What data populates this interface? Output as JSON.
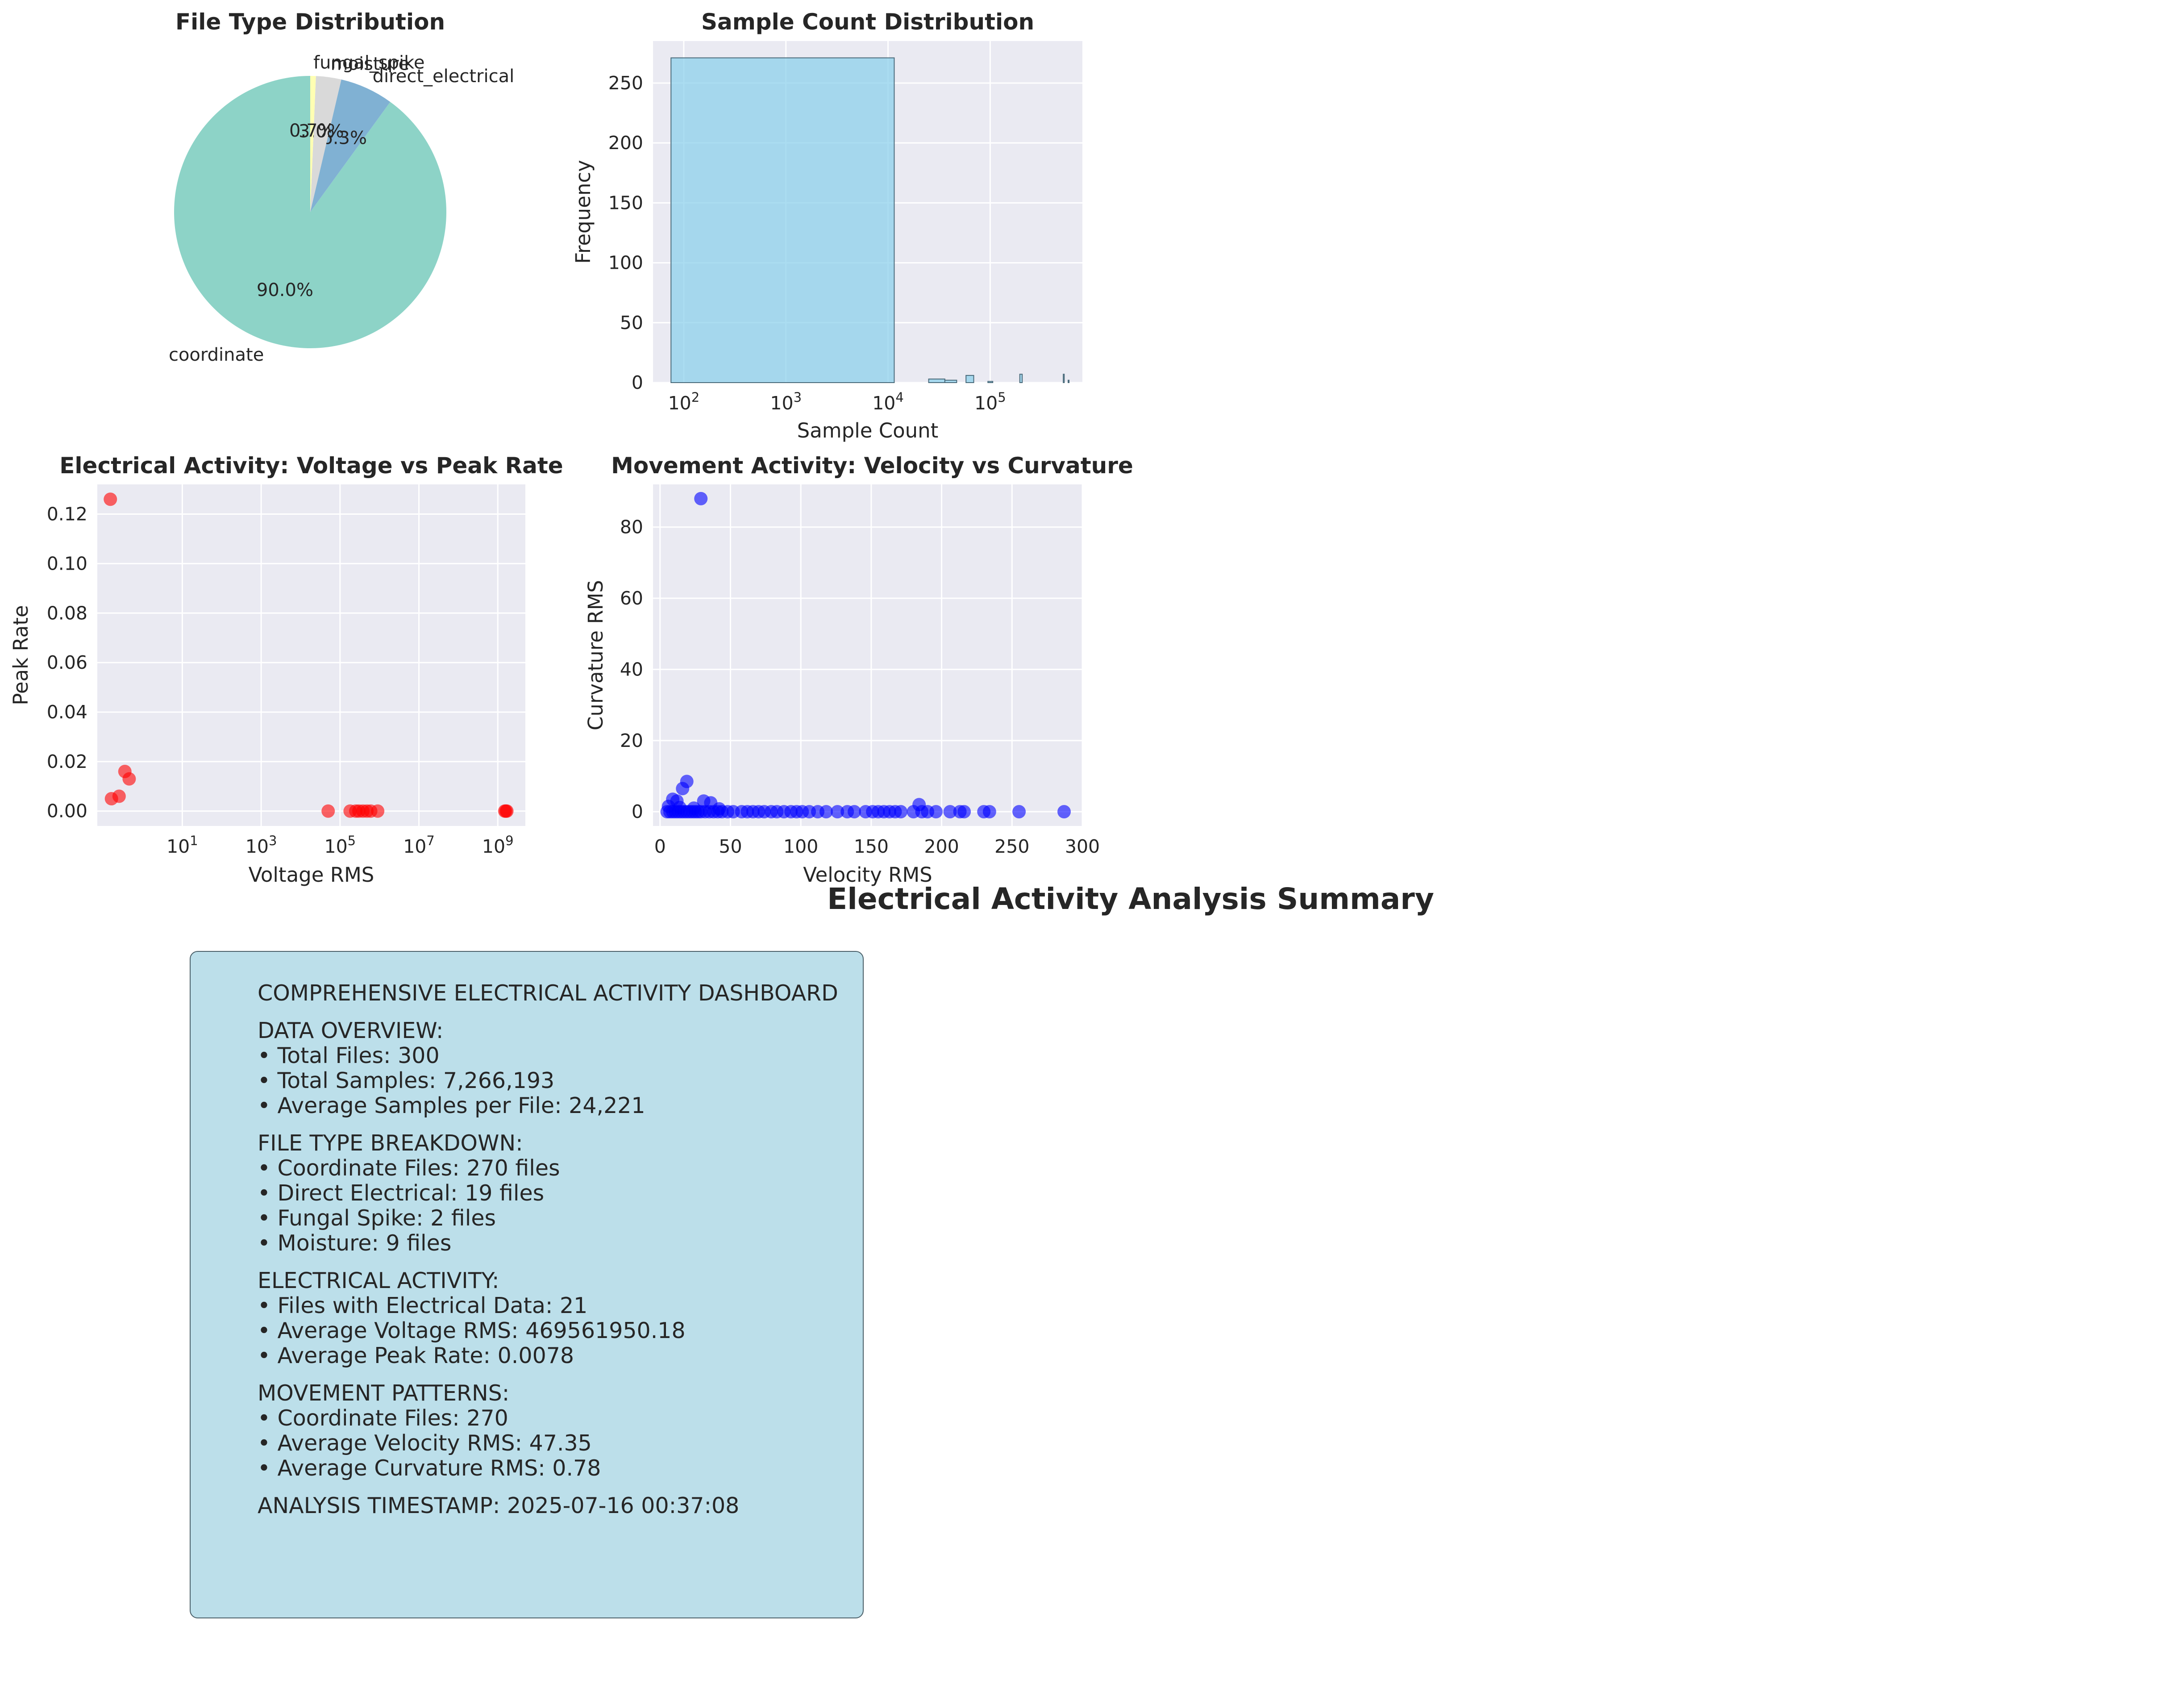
{
  "colors": {
    "axes_bg": "#eaeaf2",
    "grid": "#ffffff",
    "hist_fill": "#87ceeb",
    "pie": [
      "#8dd3c7",
      "#80b1d3",
      "#d9d9d9",
      "#ffffb3"
    ],
    "electrical_points": "#ff0000",
    "movement_points": "#0000ff",
    "summary_box": "#bcdfea"
  },
  "suptitle": "Electrical Activity Analysis Summary",
  "chart_data": [
    {
      "type": "pie",
      "title": "File Type Distribution",
      "slices": [
        {
          "label": "coordinate",
          "value": 270,
          "pct_label": "90.0%"
        },
        {
          "label": "direct_electrical",
          "value": 19,
          "pct_label": "6.3%"
        },
        {
          "label": "moisture",
          "value": 9,
          "pct_label": "3.0%"
        },
        {
          "label": "fungal_spike",
          "value": 2,
          "pct_label": "0.7%"
        }
      ],
      "start_angle_deg": 90
    },
    {
      "type": "bar",
      "title": "Sample Count Distribution",
      "xlabel": "Sample Count",
      "ylabel": "Frequency",
      "x_scale": "log",
      "xlim": [
        50,
        800000
      ],
      "ylim": [
        0,
        285
      ],
      "x_ticks": [
        "10^2",
        "10^3",
        "10^4",
        "10^5"
      ],
      "y_ticks": [
        0,
        50,
        100,
        150,
        200,
        250
      ],
      "bins": [
        {
          "x_start": 75,
          "x_end": 11500,
          "count": 271
        },
        {
          "x_start": 25000,
          "x_end": 36000,
          "count": 3
        },
        {
          "x_start": 36000,
          "x_end": 47000,
          "count": 2
        },
        {
          "x_start": 58000,
          "x_end": 69000,
          "count": 6
        },
        {
          "x_start": 95000,
          "x_end": 106000,
          "count": 1
        },
        {
          "x_start": 195000,
          "x_end": 206000,
          "count": 7
        },
        {
          "x_start": 520000,
          "x_end": 531000,
          "count": 7
        },
        {
          "x_start": 580000,
          "x_end": 591000,
          "count": 2
        }
      ]
    },
    {
      "type": "scatter",
      "title": "Electrical Activity: Voltage vs Peak Rate",
      "xlabel": "Voltage RMS",
      "ylabel": "Peak Rate",
      "x_scale": "log",
      "xlim": [
        0.07,
        5000000000
      ],
      "ylim": [
        -0.006,
        0.132
      ],
      "x_ticks": [
        "10^1",
        "10^3",
        "10^5",
        "10^7",
        "10^9"
      ],
      "y_ticks": [
        0.0,
        0.02,
        0.04,
        0.06,
        0.08,
        0.1,
        0.12
      ],
      "points": [
        {
          "x": 0.15,
          "y": 0.126
        },
        {
          "x": 0.16,
          "y": 0.005
        },
        {
          "x": 0.25,
          "y": 0.006
        },
        {
          "x": 0.35,
          "y": 0.016
        },
        {
          "x": 0.45,
          "y": 0.013
        },
        {
          "x": 50000,
          "y": 0.0
        },
        {
          "x": 180000,
          "y": 0.0
        },
        {
          "x": 250000,
          "y": 0.0
        },
        {
          "x": 300000,
          "y": 0.0
        },
        {
          "x": 380000,
          "y": 0.0
        },
        {
          "x": 480000,
          "y": 0.0
        },
        {
          "x": 600000,
          "y": 0.0
        },
        {
          "x": 900000,
          "y": 0.0
        },
        {
          "x": 1500000000,
          "y": 0.0
        },
        {
          "x": 1600000000,
          "y": 0.0
        },
        {
          "x": 1700000000,
          "y": 0.0
        }
      ]
    },
    {
      "type": "scatter",
      "title": "Movement Activity: Velocity vs Curvature",
      "xlabel": "Velocity RMS",
      "ylabel": "Curvature RMS",
      "xlim": [
        -5,
        300
      ],
      "ylim": [
        -4,
        92
      ],
      "x_ticks": [
        0,
        50,
        100,
        150,
        200,
        250,
        300
      ],
      "y_ticks": [
        0,
        20,
        40,
        60,
        80
      ],
      "points": [
        {
          "x": 29,
          "y": 88
        },
        {
          "x": 19,
          "y": 8.5
        },
        {
          "x": 16,
          "y": 6.5
        },
        {
          "x": 9,
          "y": 3.5
        },
        {
          "x": 12,
          "y": 3
        },
        {
          "x": 31,
          "y": 3
        },
        {
          "x": 36,
          "y": 2.5
        },
        {
          "x": 184,
          "y": 2
        },
        {
          "x": 6,
          "y": 1.5
        },
        {
          "x": 14,
          "y": 1.2
        },
        {
          "x": 24,
          "y": 1
        },
        {
          "x": 42,
          "y": 0.8
        },
        {
          "x": 5,
          "y": 0
        },
        {
          "x": 7,
          "y": 0
        },
        {
          "x": 9,
          "y": 0
        },
        {
          "x": 11,
          "y": 0
        },
        {
          "x": 13,
          "y": 0
        },
        {
          "x": 15,
          "y": 0
        },
        {
          "x": 17,
          "y": 0
        },
        {
          "x": 19,
          "y": 0
        },
        {
          "x": 21,
          "y": 0
        },
        {
          "x": 23,
          "y": 0
        },
        {
          "x": 25,
          "y": 0
        },
        {
          "x": 27,
          "y": 0
        },
        {
          "x": 29,
          "y": 0
        },
        {
          "x": 32,
          "y": 0
        },
        {
          "x": 35,
          "y": 0
        },
        {
          "x": 38,
          "y": 0
        },
        {
          "x": 41,
          "y": 0
        },
        {
          "x": 44,
          "y": 0
        },
        {
          "x": 48,
          "y": 0
        },
        {
          "x": 52,
          "y": 0
        },
        {
          "x": 58,
          "y": 0
        },
        {
          "x": 62,
          "y": 0
        },
        {
          "x": 66,
          "y": 0
        },
        {
          "x": 70,
          "y": 0
        },
        {
          "x": 74,
          "y": 0
        },
        {
          "x": 79,
          "y": 0
        },
        {
          "x": 83,
          "y": 0
        },
        {
          "x": 88,
          "y": 0
        },
        {
          "x": 93,
          "y": 0
        },
        {
          "x": 97,
          "y": 0
        },
        {
          "x": 101,
          "y": 0
        },
        {
          "x": 106,
          "y": 0
        },
        {
          "x": 112,
          "y": 0
        },
        {
          "x": 118,
          "y": 0
        },
        {
          "x": 126,
          "y": 0
        },
        {
          "x": 133,
          "y": 0
        },
        {
          "x": 138,
          "y": 0
        },
        {
          "x": 146,
          "y": 0
        },
        {
          "x": 151,
          "y": 0
        },
        {
          "x": 155,
          "y": 0
        },
        {
          "x": 159,
          "y": 0
        },
        {
          "x": 163,
          "y": 0
        },
        {
          "x": 167,
          "y": 0
        },
        {
          "x": 171,
          "y": 0
        },
        {
          "x": 180,
          "y": 0
        },
        {
          "x": 186,
          "y": 0
        },
        {
          "x": 190,
          "y": 0
        },
        {
          "x": 196,
          "y": 0
        },
        {
          "x": 206,
          "y": 0
        },
        {
          "x": 213,
          "y": 0
        },
        {
          "x": 216,
          "y": 0
        },
        {
          "x": 230,
          "y": 0
        },
        {
          "x": 234,
          "y": 0
        },
        {
          "x": 255,
          "y": 0
        },
        {
          "x": 287,
          "y": 0
        }
      ]
    }
  ],
  "summary": {
    "lines": [
      "COMPREHENSIVE ELECTRICAL ACTIVITY DASHBOARD",
      "",
      "DATA OVERVIEW:",
      "• Total Files: 300",
      "• Total Samples: 7,266,193",
      "• Average Samples per File: 24,221",
      "",
      "FILE TYPE BREAKDOWN:",
      "• Coordinate Files: 270 files",
      "• Direct Electrical: 19 files",
      "• Fungal Spike: 2 files",
      "• Moisture: 9 files",
      "",
      "ELECTRICAL ACTIVITY:",
      "• Files with Electrical Data: 21",
      "• Average Voltage RMS: 469561950.18",
      "• Average Peak Rate: 0.0078",
      "",
      "MOVEMENT PATTERNS:",
      "• Coordinate Files: 270",
      "• Average Velocity RMS: 47.35",
      "• Average Curvature RMS: 0.78",
      "",
      "ANALYSIS TIMESTAMP: 2025-07-16 00:37:08"
    ]
  }
}
